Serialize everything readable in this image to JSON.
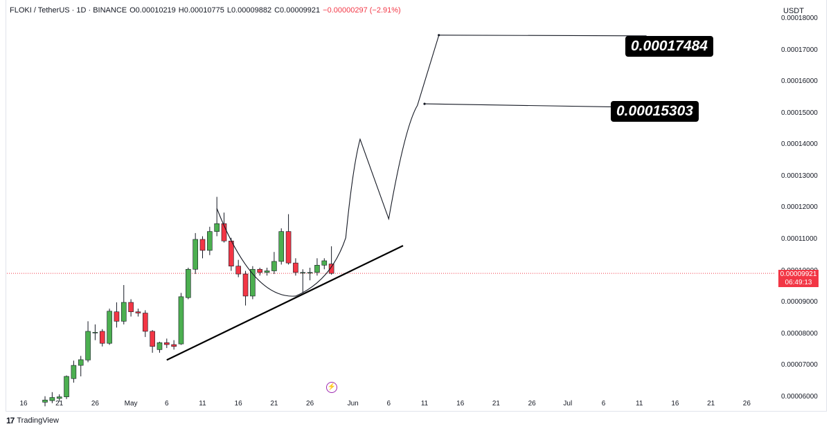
{
  "header": {
    "symbol": "FLOKI / TetherUS · 1D · BINANCE",
    "open": "O0.00010219",
    "high": "H0.00010775",
    "low": "L0.00009882",
    "close": "C0.00009921",
    "change": "−0.00000297 (−2.91%)"
  },
  "currency": "USDT",
  "price_badge": {
    "price": "0.00009921",
    "countdown": "06:49:13"
  },
  "targets": {
    "target_1": "0.00017484",
    "target_2": "0.00015303"
  },
  "branding": {
    "logo_text": "TradingView"
  },
  "colors": {
    "up": "#4caf50",
    "down": "#f23645",
    "line": "#131722"
  },
  "chart_data": {
    "type": "candlestick",
    "y_axis": {
      "ticks": [
        "0.00018000",
        "0.00017000",
        "0.00016000",
        "0.00015000",
        "0.00014000",
        "0.00013000",
        "0.00012000",
        "0.00011000",
        "0.00010000",
        "0.00009000",
        "0.00008000",
        "0.00007000",
        "0.00006000"
      ],
      "range": [
        5.97e-05,
        0.000186
      ]
    },
    "x_axis": {
      "ticks": [
        {
          "label": "16",
          "date": "2024-04-16"
        },
        {
          "label": "21",
          "date": "2024-04-21"
        },
        {
          "label": "26",
          "date": "2024-04-26"
        },
        {
          "label": "May",
          "date": "2024-05-01"
        },
        {
          "label": "6",
          "date": "2024-05-06"
        },
        {
          "label": "11",
          "date": "2024-05-11"
        },
        {
          "label": "16",
          "date": "2024-05-16"
        },
        {
          "label": "21",
          "date": "2024-05-21"
        },
        {
          "label": "26",
          "date": "2024-05-26"
        },
        {
          "label": "Jun",
          "date": "2024-06-01"
        },
        {
          "label": "6",
          "date": "2024-06-06"
        },
        {
          "label": "11",
          "date": "2024-06-11"
        },
        {
          "label": "16",
          "date": "2024-06-16"
        },
        {
          "label": "21",
          "date": "2024-06-21"
        },
        {
          "label": "26",
          "date": "2024-06-26"
        },
        {
          "label": "Jul",
          "date": "2024-07-01"
        },
        {
          "label": "6",
          "date": "2024-07-06"
        },
        {
          "label": "11",
          "date": "2024-07-11"
        },
        {
          "label": "16",
          "date": "2024-07-16"
        },
        {
          "label": "21",
          "date": "2024-07-21"
        },
        {
          "label": "26",
          "date": "2024-07-26"
        }
      ]
    },
    "candles": [
      {
        "date": "2024-04-19",
        "o": 5.83e-05,
        "h": 6.02e-05,
        "l": 5.7e-05,
        "c": 5.9e-05
      },
      {
        "date": "2024-04-20",
        "o": 5.88e-05,
        "h": 6.15e-05,
        "l": 5.8e-05,
        "c": 5.98e-05
      },
      {
        "date": "2024-04-21",
        "o": 5.95e-05,
        "h": 6.08e-05,
        "l": 5.85e-05,
        "c": 6e-05
      },
      {
        "date": "2024-04-22",
        "o": 6e-05,
        "h": 6.68e-05,
        "l": 5.93e-05,
        "c": 6.65e-05
      },
      {
        "date": "2024-04-23",
        "o": 6.58e-05,
        "h": 7.15e-05,
        "l": 6.45e-05,
        "c": 7e-05
      },
      {
        "date": "2024-04-24",
        "o": 7e-05,
        "h": 7.3e-05,
        "l": 6.65e-05,
        "c": 7.18e-05
      },
      {
        "date": "2024-04-25",
        "o": 7.17e-05,
        "h": 8.4e-05,
        "l": 7.1e-05,
        "c": 8.08e-05
      },
      {
        "date": "2024-04-26",
        "o": 8.05e-05,
        "h": 8.3e-05,
        "l": 7.8e-05,
        "c": 8.05e-05
      },
      {
        "date": "2024-04-27",
        "o": 8.08e-05,
        "h": 8.15e-05,
        "l": 7.6e-05,
        "c": 7.7e-05
      },
      {
        "date": "2024-04-28",
        "o": 7.7e-05,
        "h": 8.8e-05,
        "l": 7.65e-05,
        "c": 8.72e-05
      },
      {
        "date": "2024-04-29",
        "o": 8.7e-05,
        "h": 9e-05,
        "l": 8.2e-05,
        "c": 8.4e-05
      },
      {
        "date": "2024-04-30",
        "o": 8.4e-05,
        "h": 9.55e-05,
        "l": 8.3e-05,
        "c": 9e-05
      },
      {
        "date": "2024-05-01",
        "o": 9e-05,
        "h": 9.1e-05,
        "l": 8.55e-05,
        "c": 8.7e-05
      },
      {
        "date": "2024-05-02",
        "o": 8.7e-05,
        "h": 8.8e-05,
        "l": 8.55e-05,
        "c": 8.66e-05
      },
      {
        "date": "2024-05-03",
        "o": 8.66e-05,
        "h": 8.75e-05,
        "l": 7.9e-05,
        "c": 8.08e-05
      },
      {
        "date": "2024-05-04",
        "o": 8.08e-05,
        "h": 8.12e-05,
        "l": 7.4e-05,
        "c": 7.6e-05
      },
      {
        "date": "2024-05-05",
        "o": 7.5e-05,
        "h": 7.75e-05,
        "l": 7.4e-05,
        "c": 7.72e-05
      },
      {
        "date": "2024-05-06",
        "o": 7.72e-05,
        "h": 7.85e-05,
        "l": 7.55e-05,
        "c": 7.66e-05
      },
      {
        "date": "2024-05-07",
        "o": 7.66e-05,
        "h": 7.8e-05,
        "l": 7.5e-05,
        "c": 7.6e-05
      },
      {
        "date": "2024-05-08",
        "o": 7.68e-05,
        "h": 9.3e-05,
        "l": 7.65e-05,
        "c": 9.18e-05
      },
      {
        "date": "2024-05-09",
        "o": 9.15e-05,
        "h": 0.000101,
        "l": 9.1e-05,
        "c": 0.0001005
      },
      {
        "date": "2024-05-10",
        "o": 0.0001005,
        "h": 0.000112,
        "l": 9.9e-05,
        "c": 0.00011
      },
      {
        "date": "2024-05-11",
        "o": 0.00011,
        "h": 0.000111,
        "l": 0.000104,
        "c": 0.0001065
      },
      {
        "date": "2024-05-12",
        "o": 0.0001065,
        "h": 0.000114,
        "l": 0.000105,
        "c": 0.0001125
      },
      {
        "date": "2024-05-13",
        "o": 0.0001125,
        "h": 0.0001235,
        "l": 0.000111,
        "c": 0.000115
      },
      {
        "date": "2024-05-14",
        "o": 0.000115,
        "h": 0.0001185,
        "l": 0.000109,
        "c": 0.0001095
      },
      {
        "date": "2024-05-15",
        "o": 0.0001095,
        "h": 0.0001105,
        "l": 0.0001,
        "c": 0.0001015
      },
      {
        "date": "2024-05-16",
        "o": 0.0001015,
        "h": 0.0001035,
        "l": 9.8e-05,
        "c": 9.9e-05
      },
      {
        "date": "2024-05-17",
        "o": 9.9e-05,
        "h": 0.0001,
        "l": 8.9e-05,
        "c": 9.2e-05
      },
      {
        "date": "2024-05-18",
        "o": 9.2e-05,
        "h": 0.0001015,
        "l": 9.1e-05,
        "c": 0.0001005
      },
      {
        "date": "2024-05-19",
        "o": 0.0001005,
        "h": 0.000101,
        "l": 9.85e-05,
        "c": 9.95e-05
      },
      {
        "date": "2024-05-20",
        "o": 9.95e-05,
        "h": 0.000101,
        "l": 9.85e-05,
        "c": 0.0001
      },
      {
        "date": "2024-05-21",
        "o": 0.0001,
        "h": 0.000106,
        "l": 9.9e-05,
        "c": 0.000103
      },
      {
        "date": "2024-05-22",
        "o": 0.000103,
        "h": 0.0001135,
        "l": 0.000102,
        "c": 0.0001125
      },
      {
        "date": "2024-05-23",
        "o": 0.0001125,
        "h": 0.000118,
        "l": 0.000102,
        "c": 0.0001025
      },
      {
        "date": "2024-05-24",
        "o": 0.0001025,
        "h": 0.000104,
        "l": 9.85e-05,
        "c": 9.95e-05
      },
      {
        "date": "2024-05-25",
        "o": 9.95e-05,
        "h": 0.0001005,
        "l": 9.3e-05,
        "c": 9.95e-05
      },
      {
        "date": "2024-05-26",
        "o": 9.95e-05,
        "h": 0.000101,
        "l": 9.7e-05,
        "c": 9.95e-05
      },
      {
        "date": "2024-05-27",
        "o": 9.95e-05,
        "h": 0.000104,
        "l": 9.85e-05,
        "c": 0.0001018
      },
      {
        "date": "2024-05-28",
        "o": 0.0001018,
        "h": 0.000104,
        "l": 0.0001005,
        "c": 0.0001032
      },
      {
        "date": "2024-05-29",
        "o": 0.0001022,
        "h": 0.0001078,
        "l": 9.88e-05,
        "c": 9.92e-05
      }
    ],
    "trendline": [
      {
        "date": "2024-05-06",
        "price": 7.17e-05
      },
      {
        "date": "2024-06-08",
        "price": 0.000108
      }
    ],
    "cup_curve": [
      {
        "date": "2024-05-13",
        "price": 0.0001198
      },
      {
        "date": "2024-05-18",
        "price": 0.0001015
      },
      {
        "date": "2024-05-24",
        "price": 9.2e-05
      },
      {
        "date": "2024-05-28",
        "price": 9.68e-05
      },
      {
        "date": "2024-05-31",
        "price": 0.0001105
      },
      {
        "date": "2024-06-02",
        "price": 0.0001418
      },
      {
        "date": "2024-06-06",
        "price": 0.0001165
      },
      {
        "date": "2024-06-10",
        "price": 0.0001525
      },
      {
        "date": "2024-06-13",
        "price": 0.0001748
      }
    ],
    "target_lines": [
      {
        "price": 0.00017484,
        "start_date": "2024-06-13",
        "end_date": "2024-07-12"
      },
      {
        "price": 0.00015303,
        "start_date": "2024-06-11",
        "end_date": "2024-07-11"
      }
    ],
    "last_price": 9.921e-05
  }
}
